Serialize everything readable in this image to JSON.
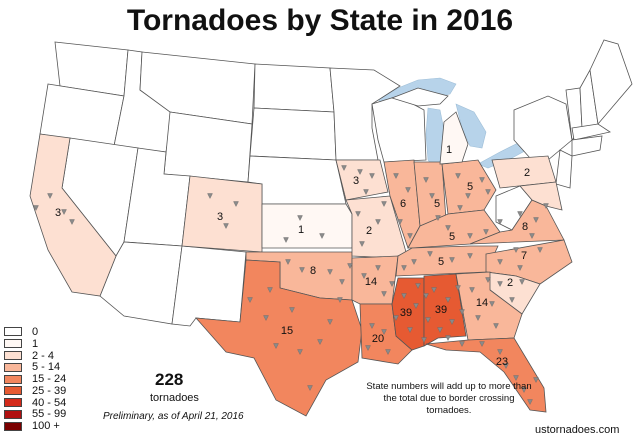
{
  "title": "Tornadoes by State in 2016",
  "legend": [
    {
      "label": "0",
      "color": "#ffffff"
    },
    {
      "label": "1",
      "color": "#fff8f4"
    },
    {
      "label": "2 - 4",
      "color": "#fde0d2"
    },
    {
      "label": "5 - 14",
      "color": "#f9b79a"
    },
    {
      "label": "15 - 24",
      "color": "#f2865e"
    },
    {
      "label": "25 - 39",
      "color": "#e65a32"
    },
    {
      "label": "40 - 54",
      "color": "#d42a1a"
    },
    {
      "label": "55 - 99",
      "color": "#b01010"
    },
    {
      "label": "100 +",
      "color": "#7a0000"
    }
  ],
  "total": "228",
  "total_unit": "tornadoes",
  "preliminary": "Preliminary, as of April 21, 2016",
  "note": "State numbers will add up to more than the total due to border crossing tornadoes.",
  "credit": "ustornadoes.com",
  "states": {
    "ca": "3",
    "co": "3",
    "ks": "1",
    "ia": "3",
    "mo": "2",
    "il": "6",
    "in": "5",
    "oh": "5",
    "mi": "1",
    "pa": "2",
    "ok": "8",
    "tx": "15",
    "ar": "14",
    "la": "20",
    "ms": "39",
    "al": "39",
    "ga": "14",
    "fl": "23",
    "ky": "5",
    "tn": "5",
    "nc": "7",
    "va": "8",
    "sc": "2"
  }
}
